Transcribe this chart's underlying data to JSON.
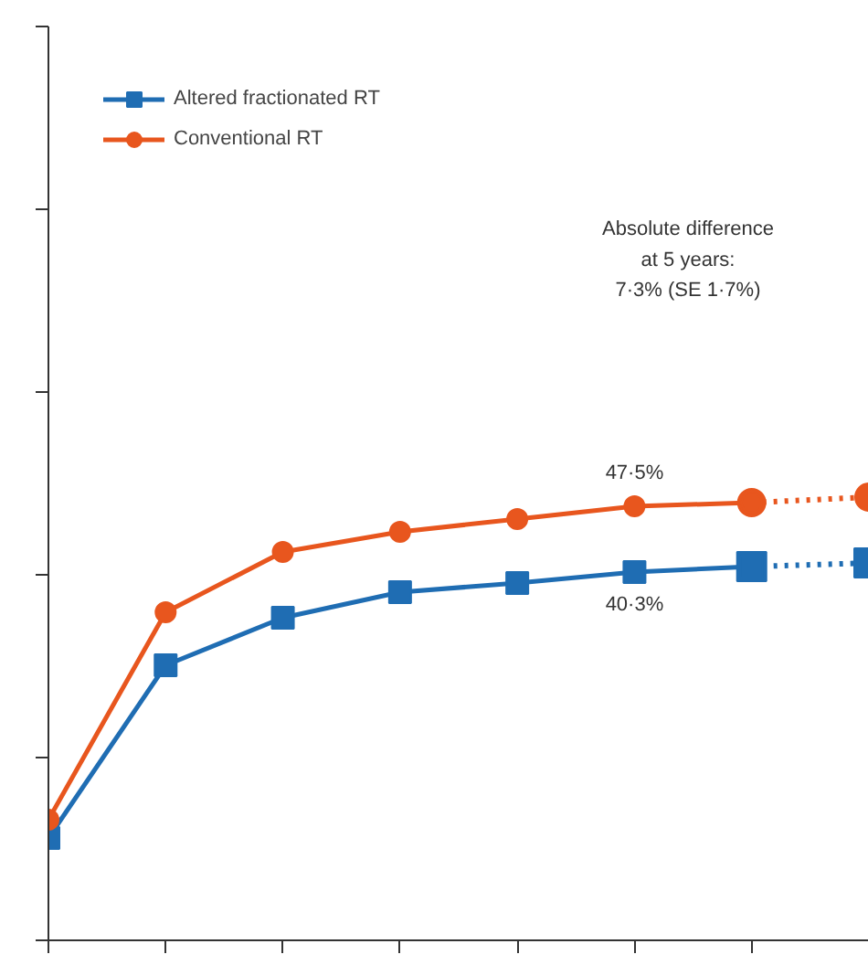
{
  "chart_data": {
    "type": "line",
    "categories": [
      null,
      null,
      null,
      null,
      null,
      null,
      null,
      null
    ],
    "ylim": [
      0,
      100
    ],
    "yticks": [
      {
        "value": 0,
        "label": null
      },
      {
        "value": 20,
        "label": null
      },
      {
        "value": 40,
        "label": null
      },
      {
        "value": 60,
        "label": null
      },
      {
        "value": 80,
        "label": null
      },
      {
        "value": 100,
        "label": null
      }
    ],
    "grid": false,
    "legend": "top left",
    "series": [
      {
        "color": "#1f6db3",
        "marker": "square",
        "line_style": "dotted",
        "values": [
          null,
          null,
          null,
          null,
          null,
          null,
          40.9,
          41.3
        ]
      },
      {
        "color": "#e8561e",
        "marker": "circle",
        "line_style": "dotted",
        "values": [
          null,
          null,
          null,
          null,
          null,
          null,
          47.9,
          48.5
        ]
      },
      {
        "name": "Altered fractionated RT",
        "color": "#1f6db3",
        "marker": "square",
        "values": [
          11.2,
          30.1,
          35.3,
          38.1,
          39.1,
          40.3,
          40.9,
          null
        ],
        "value_labels": [
          null,
          null,
          null,
          null,
          null,
          "40·3%",
          null,
          null
        ]
      },
      {
        "name": "Conventional RT",
        "color": "#e8561e",
        "marker": "circle",
        "values": [
          13.2,
          35.9,
          42.5,
          44.7,
          46.1,
          47.5,
          47.9,
          null
        ],
        "value_labels": [
          null,
          null,
          null,
          null,
          null,
          "47·5%",
          null,
          null
        ]
      }
    ],
    "annotations": [
      "Absolute difference\nat 5 years:\n7·3% (SE 1·7%)"
    ]
  }
}
